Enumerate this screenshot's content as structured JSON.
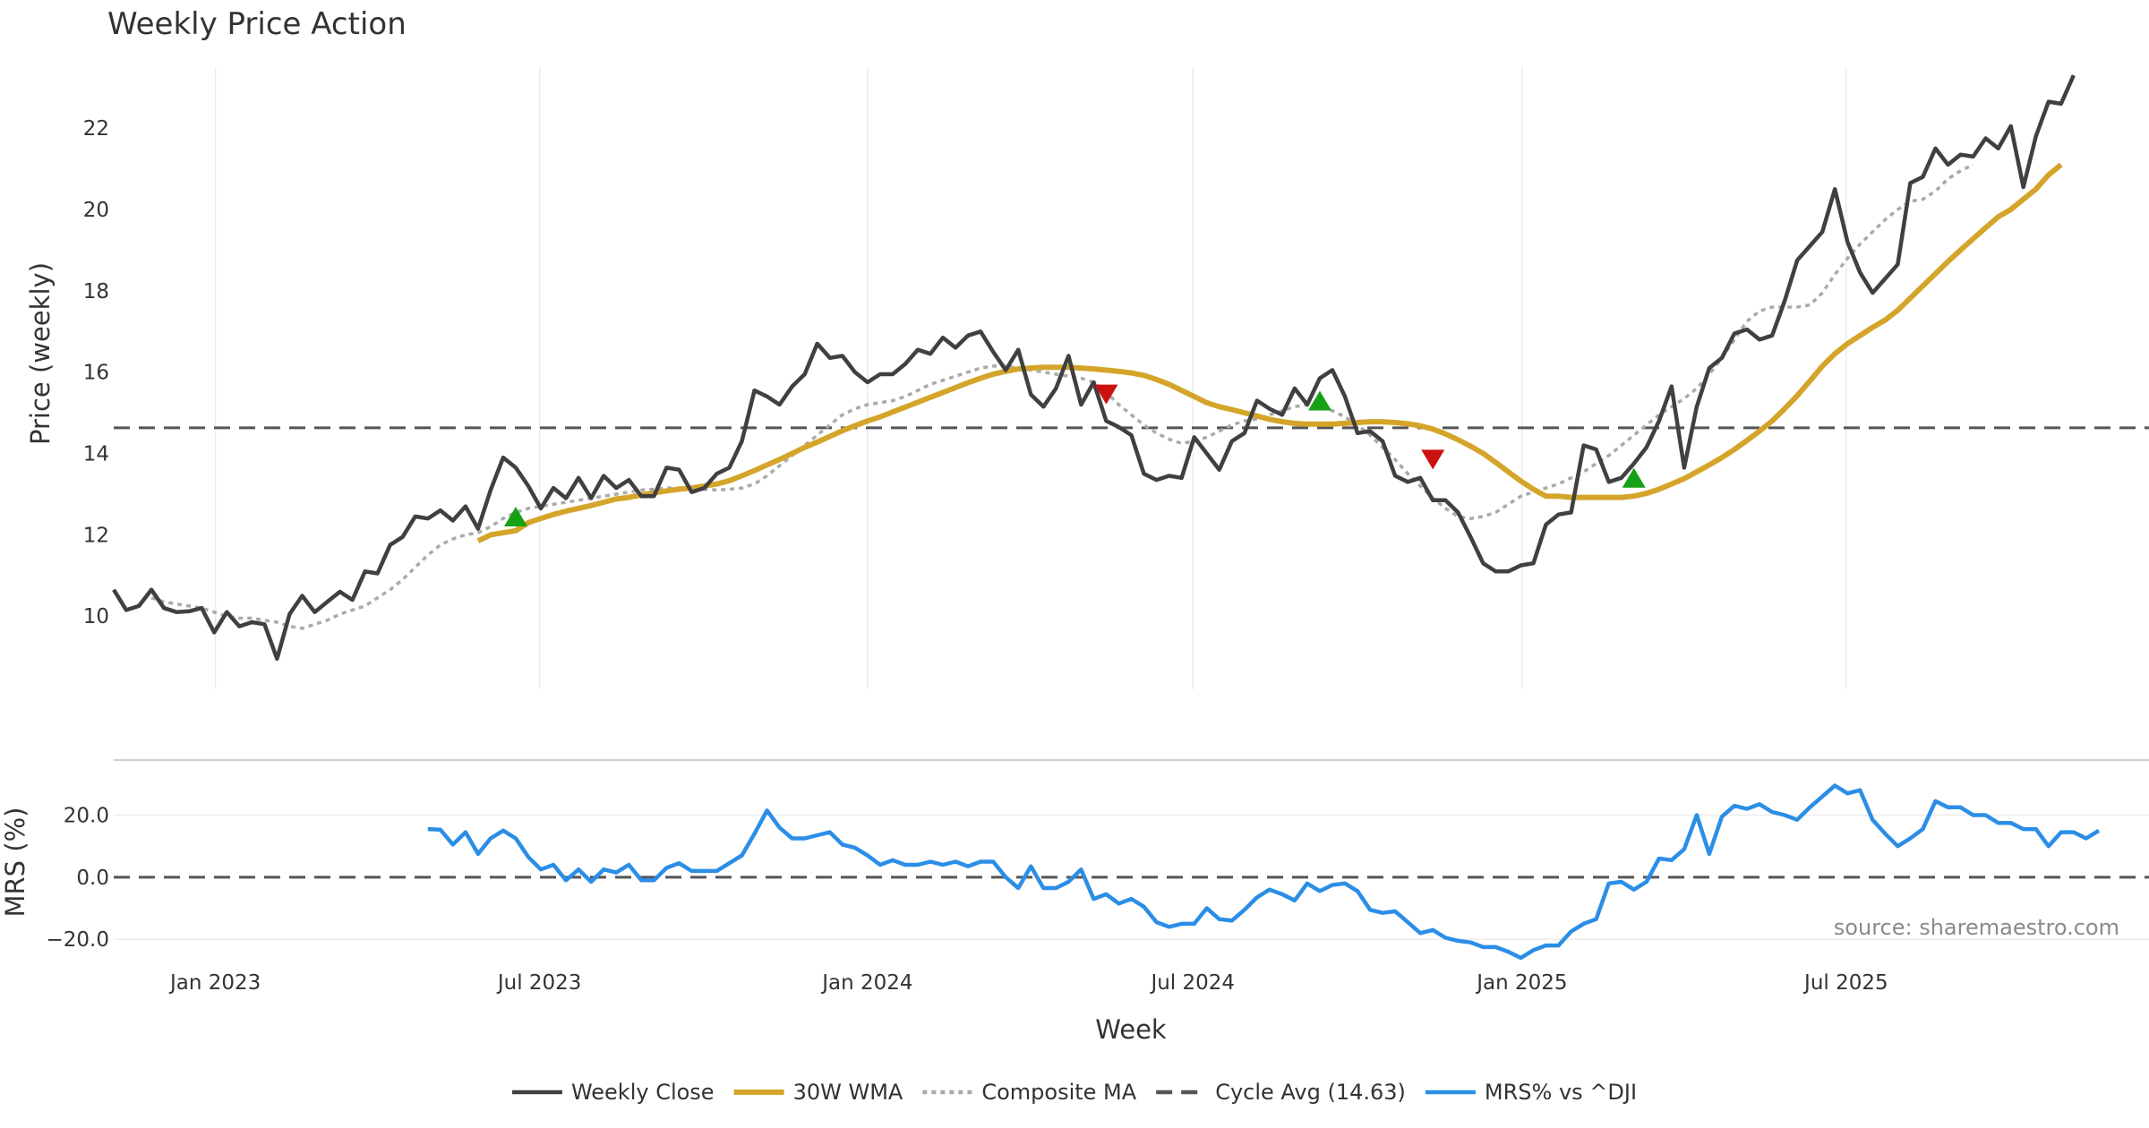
{
  "title": "Weekly Price Action",
  "source": "source: sharemaestro.com",
  "colors": {
    "close": "#404040",
    "wma": "#d4a52a",
    "composite": "#aaaaaa",
    "cycle": "#555555",
    "mrs": "#2b8ee6",
    "buy": "#16a016",
    "sell": "#cc1111",
    "grid": "#ececec"
  },
  "chart_data": [
    {
      "type": "line",
      "panel": "price",
      "ylabel": "Price (weekly)",
      "xlabel": "Week",
      "x_unit": "week index (0 = 2022-10-30)",
      "xlim": [
        0,
        162
      ],
      "ylim": [
        8.2,
        23.5
      ],
      "y_ticks": [
        10,
        12,
        14,
        16,
        18,
        20,
        22
      ],
      "x_ticks": [
        {
          "label": "Jan 2023",
          "week": 8.1
        },
        {
          "label": "Jul 2023",
          "week": 33.9
        },
        {
          "label": "Jan 2024",
          "week": 60.0
        },
        {
          "label": "Jul 2024",
          "week": 85.9
        },
        {
          "label": "Jan 2025",
          "week": 112.1
        },
        {
          "label": "Jul 2025",
          "week": 137.9
        }
      ],
      "cycle_avg": 14.63,
      "series": [
        {
          "name": "Weekly Close",
          "key": "close",
          "start_week": 0,
          "values": [
            10.65,
            10.15,
            10.25,
            10.65,
            10.2,
            10.1,
            10.12,
            10.2,
            9.6,
            10.1,
            9.75,
            9.85,
            9.8,
            8.95,
            10.05,
            10.5,
            10.1,
            10.35,
            10.6,
            10.4,
            11.1,
            11.05,
            11.75,
            11.95,
            12.45,
            12.4,
            12.6,
            12.35,
            12.7,
            12.15,
            13.1,
            13.9,
            13.65,
            13.2,
            12.65,
            13.15,
            12.9,
            13.4,
            12.9,
            13.45,
            13.15,
            13.35,
            12.95,
            12.95,
            13.65,
            13.6,
            13.05,
            13.15,
            13.5,
            13.65,
            14.3,
            15.55,
            15.4,
            15.2,
            15.65,
            15.95,
            16.7,
            16.35,
            16.4,
            16.0,
            15.75,
            15.95,
            15.95,
            16.2,
            16.55,
            16.45,
            16.85,
            16.6,
            16.9,
            17.0,
            16.5,
            16.05,
            16.55,
            15.45,
            15.15,
            15.6,
            16.4,
            15.2,
            15.75,
            14.8,
            14.65,
            14.45,
            13.5,
            13.35,
            13.45,
            13.4,
            14.4,
            14.0,
            13.6,
            14.3,
            14.5,
            15.3,
            15.1,
            14.95,
            15.6,
            15.2,
            15.85,
            16.05,
            15.4,
            14.5,
            14.55,
            14.3,
            13.45,
            13.3,
            13.4,
            12.85,
            12.85,
            12.55,
            11.95,
            11.3,
            11.1,
            11.1,
            11.25,
            11.3,
            12.25,
            12.5,
            12.55,
            14.2,
            14.1,
            13.3,
            13.4,
            13.75,
            14.15,
            14.8,
            15.65,
            13.65,
            15.15,
            16.1,
            16.35,
            16.95,
            17.05,
            16.8,
            16.9,
            17.75,
            18.75,
            19.1,
            19.45,
            20.5,
            19.2,
            18.45,
            17.95,
            18.3,
            18.65,
            20.65,
            20.8,
            21.5,
            21.1,
            21.35,
            21.3,
            21.75,
            21.5,
            22.05,
            20.55,
            21.8,
            22.65,
            22.6,
            23.3
          ]
        },
        {
          "name": "30W WMA",
          "key": "wma",
          "start_week": 29,
          "values": [
            11.85,
            12.0,
            12.05,
            12.1,
            12.3,
            12.4,
            12.5,
            12.58,
            12.65,
            12.72,
            12.8,
            12.88,
            12.92,
            12.98,
            13.03,
            13.08,
            13.12,
            13.15,
            13.2,
            13.25,
            13.33,
            13.45,
            13.58,
            13.72,
            13.85,
            14.0,
            14.15,
            14.28,
            14.42,
            14.56,
            14.68,
            14.8,
            14.9,
            15.02,
            15.14,
            15.26,
            15.38,
            15.5,
            15.62,
            15.74,
            15.85,
            15.95,
            16.02,
            16.08,
            16.1,
            16.12,
            16.12,
            16.12,
            16.1,
            16.08,
            16.05,
            16.02,
            15.98,
            15.92,
            15.82,
            15.7,
            15.55,
            15.4,
            15.25,
            15.15,
            15.08,
            15.0,
            14.92,
            14.84,
            14.78,
            14.74,
            14.72,
            14.72,
            14.72,
            14.74,
            14.76,
            14.78,
            14.78,
            14.76,
            14.73,
            14.68,
            14.6,
            14.48,
            14.34,
            14.18,
            14.0,
            13.78,
            13.55,
            13.32,
            13.12,
            12.95,
            12.95,
            12.92,
            12.92,
            12.92,
            12.92,
            12.92,
            12.95,
            13.02,
            13.12,
            13.25,
            13.38,
            13.55,
            13.72,
            13.9,
            14.1,
            14.32,
            14.55,
            14.8,
            15.1,
            15.42,
            15.78,
            16.15,
            16.45,
            16.7,
            16.9,
            17.1,
            17.28,
            17.52,
            17.82,
            18.12,
            18.42,
            18.72,
            19.0,
            19.28,
            19.55,
            19.82,
            20.0,
            20.25,
            20.5,
            20.85,
            21.1
          ]
        },
        {
          "name": "Composite MA",
          "key": "composite",
          "start_week": 3,
          "values": [
            10.45,
            10.35,
            10.3,
            10.25,
            10.2,
            10.1,
            10.0,
            9.95,
            9.95,
            9.9,
            9.85,
            9.75,
            9.7,
            9.8,
            9.9,
            10.05,
            10.15,
            10.25,
            10.45,
            10.65,
            10.9,
            11.2,
            11.5,
            11.75,
            11.9,
            12.0,
            12.05,
            12.2,
            12.4,
            12.55,
            12.65,
            12.7,
            12.75,
            12.8,
            12.85,
            12.9,
            12.95,
            13.0,
            13.05,
            13.1,
            13.12,
            13.15,
            13.15,
            13.15,
            13.12,
            13.1,
            13.12,
            13.15,
            13.25,
            13.45,
            13.7,
            13.95,
            14.2,
            14.45,
            14.7,
            14.95,
            15.1,
            15.2,
            15.25,
            15.3,
            15.4,
            15.55,
            15.7,
            15.8,
            15.9,
            16.0,
            16.1,
            16.15,
            16.15,
            16.1,
            16.05,
            16.0,
            15.95,
            15.9,
            15.85,
            15.75,
            15.5,
            15.2,
            14.95,
            14.7,
            14.5,
            14.35,
            14.25,
            14.3,
            14.4,
            14.55,
            14.7,
            14.8,
            14.85,
            14.95,
            15.05,
            15.15,
            15.2,
            15.15,
            15.05,
            14.9,
            14.7,
            14.45,
            14.15,
            13.85,
            13.5,
            13.2,
            12.9,
            12.65,
            12.45,
            12.4,
            12.45,
            12.55,
            12.75,
            12.95,
            13.05,
            13.15,
            13.25,
            13.4,
            13.55,
            13.75,
            13.95,
            14.2,
            14.45,
            14.7,
            14.95,
            15.15,
            15.35,
            15.6,
            15.95,
            16.35,
            16.8,
            17.25,
            17.5,
            17.6,
            17.6,
            17.6,
            17.65,
            17.95,
            18.4,
            18.8,
            19.15,
            19.45,
            19.75,
            20.0,
            20.2,
            20.25,
            20.45,
            20.75,
            20.95,
            21.1
          ]
        }
      ],
      "signals": [
        {
          "type": "buy",
          "week": 32,
          "price": 12.45
        },
        {
          "type": "sell",
          "week": 79,
          "price": 15.45
        },
        {
          "type": "buy",
          "week": 96,
          "price": 15.3
        },
        {
          "type": "sell",
          "week": 105,
          "price": 13.85
        },
        {
          "type": "buy",
          "week": 121,
          "price": 13.4
        }
      ]
    },
    {
      "type": "line",
      "panel": "mrs",
      "ylabel": "MRS (%)",
      "ylim": [
        -26,
        36
      ],
      "y_ticks": [
        {
          "value": 20,
          "label": "20.0"
        },
        {
          "value": 0,
          "label": "0.0"
        },
        {
          "value": -20,
          "label": "−20.0"
        }
      ],
      "zero_line": 0,
      "series": [
        {
          "name": "MRS% vs ^DJI",
          "key": "mrs",
          "start_week": 25,
          "values": [
            15.5,
            15.3,
            10.5,
            14.5,
            7.5,
            12.5,
            15.0,
            12.5,
            6.5,
            2.5,
            4.0,
            -1.0,
            2.5,
            -1.5,
            2.5,
            1.5,
            4.0,
            -1.0,
            -1.0,
            3.0,
            4.5,
            2.0,
            2.0,
            2.0,
            4.5,
            7.0,
            14.0,
            21.5,
            16.0,
            12.5,
            12.5,
            13.5,
            14.5,
            10.5,
            9.5,
            7.0,
            4.0,
            5.5,
            4.0,
            4.0,
            5.0,
            4.0,
            5.0,
            3.5,
            5.0,
            5.0,
            0.0,
            -3.5,
            3.5,
            -3.5,
            -3.5,
            -1.5,
            2.5,
            -7.0,
            -5.5,
            -8.5,
            -7.0,
            -9.5,
            -14.5,
            -16.0,
            -15.0,
            -15.0,
            -10.0,
            -13.5,
            -14.0,
            -10.5,
            -6.5,
            -4.0,
            -5.5,
            -7.5,
            -2.0,
            -4.5,
            -2.5,
            -2.0,
            -4.5,
            -10.5,
            -11.5,
            -11.0,
            -14.5,
            -18.0,
            -17.0,
            -19.5,
            -20.5,
            -21.0,
            -22.5,
            -22.5,
            -24.0,
            -26.0,
            -23.5,
            -22.0,
            -22.0,
            -17.5,
            -15.0,
            -13.5,
            -2.0,
            -1.5,
            -4.0,
            -1.5,
            6.0,
            5.5,
            9.0,
            20.0,
            7.5,
            19.5,
            23.0,
            22.0,
            23.5,
            21.0,
            20.0,
            18.5,
            22.5,
            26.0,
            29.5,
            27.0,
            28.0,
            18.5,
            14.0,
            10.0,
            12.5,
            15.5,
            24.5,
            22.5,
            22.5,
            20.0,
            20.0,
            17.5,
            17.5,
            15.5,
            15.5,
            10.0,
            14.5,
            14.5,
            12.5,
            15.0
          ]
        }
      ]
    }
  ],
  "legend": [
    {
      "label": "Weekly Close",
      "key": "close",
      "style": "solid"
    },
    {
      "label": "30W WMA",
      "key": "wma",
      "style": "solid"
    },
    {
      "label": "Composite MA",
      "key": "composite",
      "style": "dotted"
    },
    {
      "label": "Cycle Avg (14.63)",
      "key": "cycle",
      "style": "dashed"
    },
    {
      "label": "MRS% vs ^DJI",
      "key": "mrs",
      "style": "solid"
    }
  ]
}
